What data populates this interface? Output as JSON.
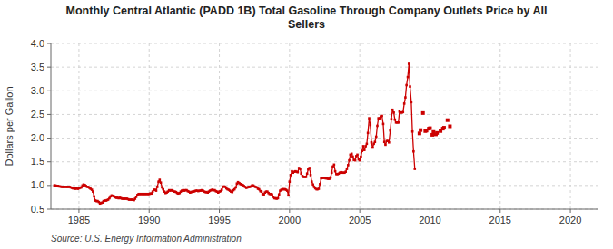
{
  "chart_data": {
    "type": "line",
    "title": "Monthly Central Atlantic (PADD 1B) Total Gasoline Through Company Outlets Price by All\nSellers",
    "y_label": "Dollars per Gallon",
    "source": "Source: U.S. Energy Information Administration",
    "xlim": [
      1983,
      2022
    ],
    "ylim": [
      0.5,
      4.0
    ],
    "xticks": [
      1985,
      1990,
      1995,
      2000,
      2005,
      2010,
      2015,
      2020
    ],
    "yticks": [
      0.5,
      {
        "value": 1.0,
        "label": "1.0"
      },
      1.5,
      {
        "value": 2.0,
        "label": "2.0"
      },
      2.5,
      {
        "value": 3.0,
        "label": "3.0"
      },
      3.5,
      {
        "value": 4.0,
        "label": "4.0"
      }
    ],
    "grid": true,
    "series": [
      {
        "type": "line",
        "marker": "square",
        "color": "#cc0000",
        "x": [
          1983.25,
          1983.33,
          1983.42,
          1983.5,
          1983.58,
          1983.67,
          1983.75,
          1983.83,
          1983.92,
          1984.0,
          1984.08,
          1984.17,
          1984.25,
          1984.33,
          1984.42,
          1984.5,
          1984.58,
          1984.67,
          1984.75,
          1984.83,
          1984.92,
          1985.0,
          1985.08,
          1985.17,
          1985.25,
          1985.33,
          1985.42,
          1985.5,
          1985.58,
          1985.67,
          1985.75,
          1985.83,
          1985.92,
          1986.0,
          1986.08,
          1986.17,
          1986.25,
          1986.33,
          1986.42,
          1986.5,
          1986.58,
          1986.67,
          1986.75,
          1986.83,
          1986.92,
          1987.0,
          1987.08,
          1987.17,
          1987.25,
          1987.33,
          1987.42,
          1987.5,
          1987.58,
          1987.67,
          1987.75,
          1987.83,
          1987.92,
          1988.0,
          1988.08,
          1988.17,
          1988.25,
          1988.33,
          1988.42,
          1988.5,
          1988.58,
          1988.67,
          1988.75,
          1988.83,
          1988.92,
          1989.0,
          1989.08,
          1989.17,
          1989.25,
          1989.33,
          1989.42,
          1989.5,
          1989.58,
          1989.67,
          1989.75,
          1989.83,
          1989.92,
          1990.0,
          1990.08,
          1990.17,
          1990.25,
          1990.33,
          1990.42,
          1990.5,
          1990.58,
          1990.67,
          1990.75,
          1990.83,
          1990.92,
          1991.0,
          1991.08,
          1991.17,
          1991.25,
          1991.33,
          1991.42,
          1991.5,
          1991.58,
          1991.67,
          1991.75,
          1991.83,
          1991.92,
          1992.0,
          1992.08,
          1992.17,
          1992.25,
          1992.33,
          1992.42,
          1992.5,
          1992.58,
          1992.67,
          1992.75,
          1992.83,
          1992.92,
          1993.0,
          1993.08,
          1993.17,
          1993.25,
          1993.33,
          1993.42,
          1993.5,
          1993.58,
          1993.67,
          1993.75,
          1993.83,
          1993.92,
          1994.0,
          1994.08,
          1994.17,
          1994.25,
          1994.33,
          1994.42,
          1994.5,
          1994.58,
          1994.67,
          1994.75,
          1994.83,
          1994.92,
          1995.0,
          1995.08,
          1995.17,
          1995.25,
          1995.33,
          1995.42,
          1995.5,
          1995.58,
          1995.67,
          1995.75,
          1995.83,
          1995.92,
          1996.0,
          1996.08,
          1996.17,
          1996.25,
          1996.33,
          1996.42,
          1996.5,
          1996.58,
          1996.67,
          1996.75,
          1996.83,
          1996.92,
          1997.0,
          1997.08,
          1997.17,
          1997.25,
          1997.33,
          1997.42,
          1997.5,
          1997.58,
          1997.67,
          1997.75,
          1997.83,
          1997.92,
          1998.0,
          1998.08,
          1998.17,
          1998.25,
          1998.33,
          1998.42,
          1998.5,
          1998.58,
          1998.67,
          1998.75,
          1998.83,
          1998.92,
          1999.0,
          1999.08,
          1999.17,
          1999.25,
          1999.33,
          1999.42,
          1999.5,
          1999.58,
          1999.67,
          1999.75,
          1999.83,
          1999.92,
          2000.0,
          2000.08,
          2000.17,
          2000.25,
          2000.33,
          2000.42,
          2000.5,
          2000.58,
          2000.67,
          2000.75,
          2000.83,
          2000.92,
          2001.0,
          2001.08,
          2001.17,
          2001.25,
          2001.33,
          2001.42,
          2001.5,
          2001.58,
          2001.67,
          2001.75,
          2001.83,
          2001.92,
          2002.0,
          2002.08,
          2002.17,
          2002.25,
          2002.33,
          2002.42,
          2002.5,
          2002.58,
          2002.67,
          2002.75,
          2002.83,
          2002.92,
          2003.0,
          2003.08,
          2003.17,
          2003.25,
          2003.33,
          2003.42,
          2003.5,
          2003.58,
          2003.67,
          2003.75,
          2003.83,
          2003.92,
          2004.0,
          2004.08,
          2004.17,
          2004.25,
          2004.33,
          2004.42,
          2004.5,
          2004.58,
          2004.67,
          2004.75,
          2004.83,
          2004.92,
          2005.0,
          2005.08,
          2005.17,
          2005.25,
          2005.33,
          2005.42,
          2005.5,
          2005.58,
          2005.67,
          2005.75,
          2005.83,
          2005.92,
          2006.0,
          2006.08,
          2006.17,
          2006.25,
          2006.33,
          2006.42,
          2006.5,
          2006.58,
          2006.67,
          2006.75,
          2006.83,
          2006.92,
          2007.0,
          2007.08,
          2007.17,
          2007.25,
          2007.33,
          2007.42,
          2007.5,
          2007.58,
          2007.67,
          2007.75,
          2007.83,
          2007.92,
          2008.0,
          2008.08,
          2008.17,
          2008.25,
          2008.33,
          2008.42,
          2008.5,
          2008.58,
          2008.67,
          2008.75,
          2008.83,
          2008.92
        ],
        "values": [
          1.0,
          1.0,
          0.99,
          0.99,
          0.98,
          0.98,
          0.97,
          0.97,
          0.97,
          0.97,
          0.97,
          0.97,
          0.97,
          0.97,
          0.96,
          0.95,
          0.94,
          0.94,
          0.93,
          0.94,
          0.93,
          0.94,
          0.95,
          0.96,
          1.0,
          1.02,
          1.01,
          0.99,
          0.97,
          0.97,
          0.95,
          0.93,
          0.91,
          0.87,
          0.77,
          0.68,
          0.67,
          0.67,
          0.65,
          0.62,
          0.63,
          0.64,
          0.67,
          0.68,
          0.68,
          0.69,
          0.7,
          0.73,
          0.77,
          0.79,
          0.78,
          0.77,
          0.75,
          0.74,
          0.74,
          0.73,
          0.74,
          0.73,
          0.72,
          0.72,
          0.72,
          0.72,
          0.72,
          0.71,
          0.7,
          0.7,
          0.7,
          0.7,
          0.69,
          0.72,
          0.76,
          0.8,
          0.82,
          0.82,
          0.82,
          0.82,
          0.82,
          0.82,
          0.82,
          0.82,
          0.82,
          0.82,
          0.83,
          0.83,
          0.87,
          0.91,
          0.91,
          0.89,
          0.97,
          1.08,
          1.12,
          1.06,
          0.96,
          0.92,
          0.87,
          0.84,
          0.85,
          0.87,
          0.9,
          0.89,
          0.9,
          0.89,
          0.87,
          0.87,
          0.86,
          0.84,
          0.83,
          0.84,
          0.87,
          0.89,
          0.9,
          0.89,
          0.9,
          0.9,
          0.88,
          0.87,
          0.85,
          0.86,
          0.87,
          0.87,
          0.88,
          0.89,
          0.89,
          0.88,
          0.89,
          0.89,
          0.9,
          0.89,
          0.87,
          0.86,
          0.86,
          0.85,
          0.87,
          0.89,
          0.9,
          0.91,
          0.9,
          0.9,
          0.88,
          0.87,
          0.85,
          0.87,
          0.88,
          0.91,
          0.97,
          0.98,
          0.97,
          0.94,
          0.92,
          0.91,
          0.89,
          0.87,
          0.86,
          0.9,
          0.92,
          0.96,
          1.04,
          1.07,
          1.05,
          1.03,
          1.02,
          1.01,
          0.99,
          0.97,
          0.95,
          0.96,
          0.97,
          0.97,
          0.98,
          1.0,
          1.0,
          0.98,
          0.97,
          0.96,
          0.93,
          0.92,
          0.88,
          0.87,
          0.82,
          0.81,
          0.85,
          0.87,
          0.87,
          0.84,
          0.82,
          0.82,
          0.81,
          0.76,
          0.73,
          0.73,
          0.72,
          0.73,
          0.81,
          0.89,
          0.91,
          0.92,
          0.92,
          0.92,
          0.91,
          0.89,
          0.79,
          1.08,
          1.22,
          1.3,
          1.27,
          1.29,
          1.3,
          1.29,
          1.28,
          1.37,
          1.35,
          1.25,
          1.2,
          1.18,
          1.18,
          1.18,
          1.25,
          1.34,
          1.37,
          1.22,
          1.08,
          1.02,
          0.97,
          0.94,
          0.92,
          0.92,
          0.93,
          1.03,
          1.15,
          1.16,
          1.16,
          1.16,
          1.15,
          1.15,
          1.14,
          1.14,
          1.17,
          1.27,
          1.4,
          1.44,
          1.3,
          1.24,
          1.24,
          1.25,
          1.27,
          1.28,
          1.27,
          1.27,
          1.27,
          1.29,
          1.35,
          1.43,
          1.53,
          1.65,
          1.67,
          1.61,
          1.54,
          1.53,
          1.62,
          1.65,
          1.55,
          1.53,
          1.61,
          1.73,
          1.83,
          1.75,
          1.83,
          1.88,
          2.11,
          2.42,
          2.28,
          1.91,
          1.8,
          1.88,
          1.92,
          2.03,
          2.26,
          2.42,
          2.42,
          2.46,
          2.47,
          2.3,
          1.92,
          1.86,
          1.94,
          1.94,
          1.91,
          2.16,
          2.4,
          2.6,
          2.54,
          2.39,
          2.33,
          2.33,
          2.33,
          2.56,
          2.54,
          2.54,
          2.55,
          2.73,
          2.86,
          3.12,
          3.29,
          3.57,
          3.09,
          2.76,
          2.14,
          1.72,
          1.35
        ]
      },
      {
        "type": "scatter",
        "marker": "square",
        "color": "#cc0000",
        "x": [
          2009.25,
          2009.33,
          2009.5,
          2009.67,
          2009.75,
          2009.92,
          2010.0,
          2010.17,
          2010.25,
          2010.42,
          2010.5,
          2010.75,
          2010.92,
          2011.0,
          2011.25,
          2011.42
        ],
        "values": [
          2.1,
          2.17,
          2.53,
          2.15,
          2.16,
          2.2,
          2.21,
          2.07,
          2.13,
          2.08,
          2.11,
          2.15,
          2.2,
          2.22,
          2.38,
          2.25
        ]
      }
    ]
  }
}
